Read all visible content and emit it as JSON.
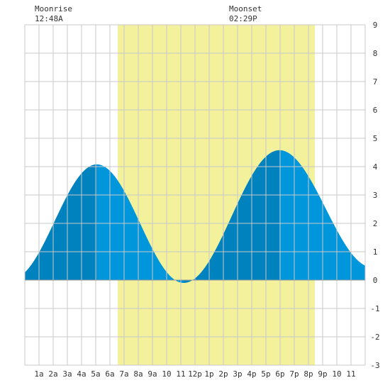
{
  "moon": {
    "rise_label": "Moonrise",
    "rise_time": "12:48A",
    "set_label": "Moonset",
    "set_time": "02:29P"
  },
  "colors": {
    "daylight": "#f3f19b",
    "rising_tide": "#0082be",
    "falling_tide": "#0096dc",
    "grid": "#c8c8c8",
    "axis_text": "#333333"
  },
  "chart_data": {
    "type": "area",
    "xlim": [
      0,
      24
    ],
    "ylim": [
      -3,
      9
    ],
    "y_ticks": [
      -3,
      -2,
      -1,
      0,
      1,
      2,
      3,
      4,
      5,
      6,
      7,
      8,
      9
    ],
    "x_ticks": [
      {
        "x": 1,
        "label": "1a"
      },
      {
        "x": 2,
        "label": "2a"
      },
      {
        "x": 3,
        "label": "3a"
      },
      {
        "x": 4,
        "label": "4a"
      },
      {
        "x": 5,
        "label": "5a"
      },
      {
        "x": 6,
        "label": "6a"
      },
      {
        "x": 7,
        "label": "7a"
      },
      {
        "x": 8,
        "label": "8a"
      },
      {
        "x": 9,
        "label": "9a"
      },
      {
        "x": 10,
        "label": "10"
      },
      {
        "x": 11,
        "label": "11"
      },
      {
        "x": 12,
        "label": "12p"
      },
      {
        "x": 13,
        "label": "1p"
      },
      {
        "x": 14,
        "label": "2p"
      },
      {
        "x": 15,
        "label": "3p"
      },
      {
        "x": 16,
        "label": "4p"
      },
      {
        "x": 17,
        "label": "5p"
      },
      {
        "x": 18,
        "label": "6p"
      },
      {
        "x": 19,
        "label": "7p"
      },
      {
        "x": 20,
        "label": "8p"
      },
      {
        "x": 21,
        "label": "9p"
      },
      {
        "x": 22,
        "label": "10"
      },
      {
        "x": 23,
        "label": "11"
      }
    ],
    "daylight": {
      "start": 6.55,
      "end": 20.45
    },
    "tide_extremes": [
      {
        "t": -0.9,
        "h": 0.05
      },
      {
        "t": 5.08,
        "h": 4.08
      },
      {
        "t": 11.2,
        "h": -0.1
      },
      {
        "t": 17.95,
        "h": 4.58
      },
      {
        "t": 24.5,
        "h": 0.45
      }
    ],
    "grid": true
  }
}
